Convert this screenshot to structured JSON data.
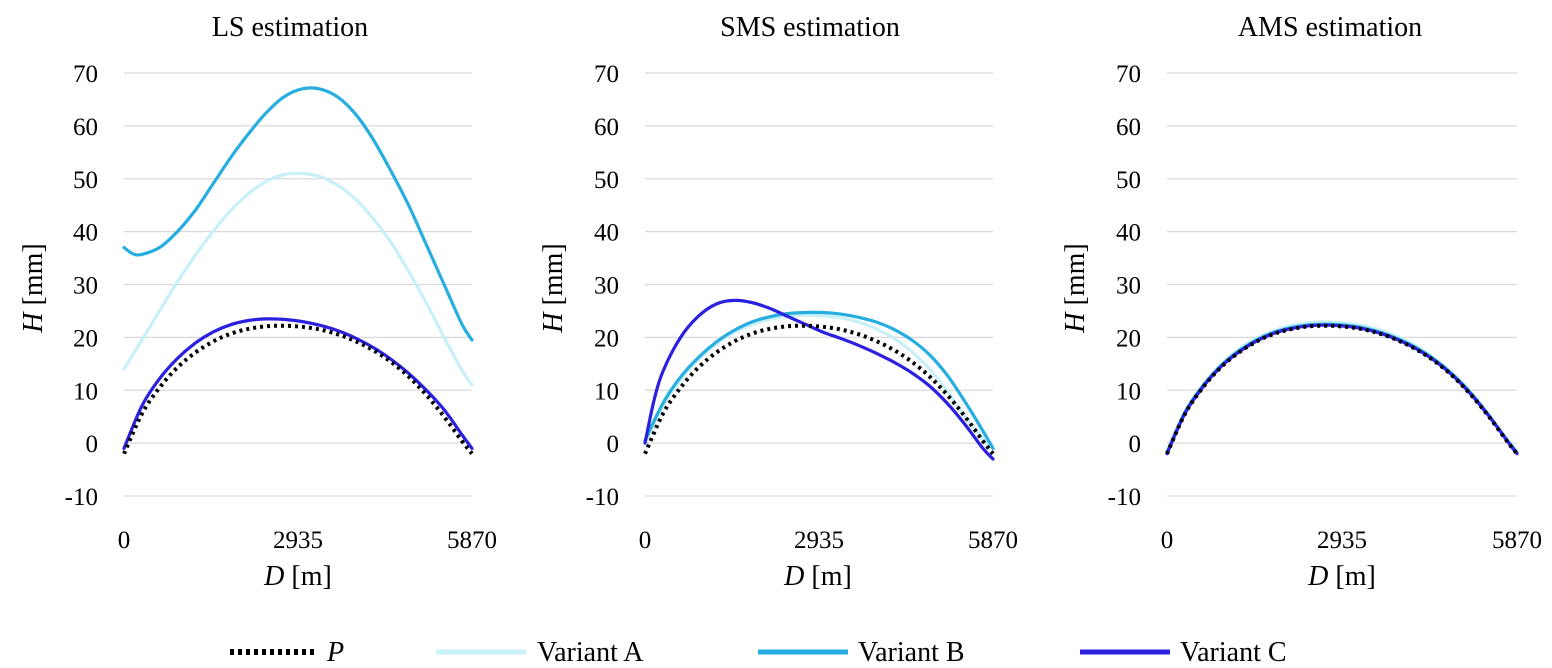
{
  "chart_data": [
    {
      "type": "line",
      "title": "LS estimation",
      "xlabel_var": "D",
      "xlabel_unit": " [m]",
      "ylabel_var": "H",
      "ylabel_unit": " [mm]",
      "xlim": [
        0,
        5870
      ],
      "ylim": [
        -10,
        70
      ],
      "xticks": [
        "0",
        "2935",
        "5870"
      ],
      "yticks": [
        "70",
        "60",
        "50",
        "40",
        "30",
        "20",
        "10",
        "0",
        "-10"
      ],
      "grid": true,
      "series": [
        {
          "name": "P",
          "x": [
            0,
            300,
            600,
            900,
            1200,
            1500,
            1800,
            2100,
            2400,
            2700,
            3000,
            3300,
            3600,
            3900,
            4200,
            4500,
            4800,
            5100,
            5400,
            5700,
            5870
          ],
          "y": [
            -2,
            5.5,
            10.5,
            14.3,
            17.1,
            19.2,
            20.7,
            21.6,
            22.1,
            22.2,
            22,
            21.5,
            20.6,
            19.3,
            17.6,
            15.4,
            12.6,
            9.1,
            5,
            0.4,
            -2
          ]
        },
        {
          "name": "Variant A",
          "x": [
            0,
            300,
            600,
            900,
            1200,
            1500,
            1800,
            2100,
            2400,
            2700,
            3000,
            3300,
            3600,
            3900,
            4200,
            4500,
            4800,
            5100,
            5400,
            5700,
            5870
          ],
          "y": [
            14,
            19.5,
            25,
            30.5,
            35.5,
            40,
            44,
            47.2,
            49.5,
            50.8,
            51,
            50.4,
            48.8,
            46.2,
            42.5,
            38,
            32.5,
            26.5,
            20,
            13.8,
            11
          ]
        },
        {
          "name": "Variant B",
          "x": [
            0,
            150,
            300,
            600,
            900,
            1200,
            1500,
            1800,
            2100,
            2400,
            2700,
            3000,
            3300,
            3600,
            3900,
            4200,
            4500,
            4800,
            5100,
            5400,
            5700,
            5870
          ],
          "y": [
            37,
            35.8,
            35.7,
            37,
            40,
            44,
            49,
            54,
            58.5,
            62.5,
            65.5,
            67,
            67,
            65.5,
            62.3,
            57.5,
            51.5,
            45,
            37.5,
            30,
            22.5,
            19.5
          ]
        },
        {
          "name": "Variant C",
          "x": [
            0,
            300,
            600,
            900,
            1200,
            1500,
            1800,
            2100,
            2400,
            2700,
            3000,
            3300,
            3600,
            3900,
            4200,
            4500,
            4800,
            5100,
            5400,
            5700,
            5870
          ],
          "y": [
            -1,
            7,
            12.2,
            16,
            18.9,
            21,
            22.4,
            23.2,
            23.5,
            23.4,
            23,
            22.3,
            21.3,
            19.9,
            18.1,
            15.9,
            13.2,
            10,
            6.3,
            1.6,
            -1
          ]
        }
      ]
    },
    {
      "type": "line",
      "title": "SMS estimation",
      "xlabel_var": "D",
      "xlabel_unit": " [m]",
      "ylabel_var": "H",
      "ylabel_unit": " [mm]",
      "xlim": [
        0,
        5870
      ],
      "ylim": [
        -10,
        70
      ],
      "xticks": [
        "0",
        "2935",
        "5870"
      ],
      "yticks": [
        "70",
        "60",
        "50",
        "40",
        "30",
        "20",
        "10",
        "0",
        "-10"
      ],
      "grid": true,
      "series": [
        {
          "name": "P",
          "x": [
            0,
            300,
            600,
            900,
            1200,
            1500,
            1800,
            2100,
            2400,
            2700,
            3000,
            3300,
            3600,
            3900,
            4200,
            4500,
            4800,
            5100,
            5400,
            5700,
            5870
          ],
          "y": [
            -2,
            5.5,
            10.5,
            14.3,
            17.1,
            19.2,
            20.7,
            21.6,
            22.1,
            22.2,
            22,
            21.5,
            20.6,
            19.3,
            17.6,
            15.4,
            12.6,
            9.1,
            5,
            0.4,
            -2
          ]
        },
        {
          "name": "Variant A",
          "x": [
            0,
            300,
            600,
            900,
            1200,
            1500,
            1800,
            2100,
            2400,
            2700,
            3000,
            3300,
            3600,
            3900,
            4200,
            4500,
            4800,
            5100,
            5400,
            5700,
            5870
          ],
          "y": [
            0,
            7,
            12,
            15.8,
            18.7,
            20.9,
            22.4,
            23.4,
            24,
            24.2,
            24.1,
            23.7,
            22.9,
            21.6,
            19.8,
            17.3,
            14,
            9.8,
            5,
            0.8,
            -1
          ]
        },
        {
          "name": "Variant B",
          "x": [
            0,
            300,
            600,
            900,
            1200,
            1500,
            1800,
            2100,
            2400,
            2700,
            3000,
            3300,
            3600,
            3900,
            4200,
            4500,
            4800,
            5100,
            5400,
            5700,
            5870
          ],
          "y": [
            0.5,
            7.5,
            12.5,
            16.2,
            19.1,
            21.3,
            22.9,
            23.9,
            24.5,
            24.7,
            24.7,
            24.4,
            23.8,
            22.9,
            21.5,
            19.5,
            16.7,
            12.8,
            7.8,
            2.3,
            -1
          ]
        },
        {
          "name": "Variant C",
          "x": [
            0,
            150,
            300,
            600,
            900,
            1200,
            1500,
            1800,
            2100,
            2400,
            2700,
            3000,
            3300,
            3600,
            3900,
            4200,
            4500,
            4800,
            5100,
            5400,
            5700,
            5870
          ],
          "y": [
            0,
            8,
            13.5,
            20,
            24,
            26.3,
            27,
            26.6,
            25.5,
            24,
            22.5,
            21,
            19.8,
            18.5,
            17,
            15.3,
            13.3,
            10.8,
            7.5,
            3.5,
            -1,
            -3
          ]
        }
      ]
    },
    {
      "type": "line",
      "title": "AMS estimation",
      "xlabel_var": "D",
      "xlabel_unit": " [m]",
      "ylabel_var": "H",
      "ylabel_unit": " [mm]",
      "xlim": [
        0,
        5870
      ],
      "ylim": [
        -10,
        70
      ],
      "xticks": [
        "0",
        "2935",
        "5870"
      ],
      "yticks": [
        "70",
        "60",
        "50",
        "40",
        "30",
        "20",
        "10",
        "0",
        "-10"
      ],
      "grid": true,
      "series": [
        {
          "name": "P",
          "x": [
            0,
            300,
            600,
            900,
            1200,
            1500,
            1800,
            2100,
            2400,
            2700,
            3000,
            3300,
            3600,
            3900,
            4200,
            4500,
            4800,
            5100,
            5400,
            5700,
            5870
          ],
          "y": [
            -2,
            5.5,
            10.5,
            14.3,
            17.1,
            19.2,
            20.7,
            21.6,
            22.1,
            22.2,
            22,
            21.5,
            20.6,
            19.3,
            17.6,
            15.4,
            12.6,
            9.1,
            5,
            0.4,
            -2
          ]
        },
        {
          "name": "Variant A",
          "x": [
            0,
            300,
            600,
            900,
            1200,
            1500,
            1800,
            2100,
            2400,
            2700,
            3000,
            3300,
            3600,
            3900,
            4200,
            4500,
            4800,
            5100,
            5400,
            5700,
            5870
          ],
          "y": [
            -1.5,
            6,
            11,
            14.8,
            17.7,
            19.8,
            21.3,
            22.3,
            22.8,
            22.9,
            22.7,
            22.2,
            21.3,
            20,
            18.2,
            15.9,
            13.1,
            9.6,
            5.4,
            0.8,
            -1.5
          ]
        },
        {
          "name": "Variant B",
          "x": [
            0,
            300,
            600,
            900,
            1200,
            1500,
            1800,
            2100,
            2400,
            2700,
            3000,
            3300,
            3600,
            3900,
            4200,
            4500,
            4800,
            5100,
            5400,
            5700,
            5870
          ],
          "y": [
            -1.8,
            5.8,
            10.8,
            14.6,
            17.4,
            19.5,
            21,
            21.9,
            22.4,
            22.5,
            22.3,
            21.8,
            20.9,
            19.6,
            17.9,
            15.7,
            12.9,
            9.4,
            5.2,
            0.6,
            -1.8
          ]
        },
        {
          "name": "Variant C",
          "x": [
            0,
            300,
            600,
            900,
            1200,
            1500,
            1800,
            2100,
            2400,
            2700,
            3000,
            3300,
            3600,
            3900,
            4200,
            4500,
            4800,
            5100,
            5400,
            5700,
            5870
          ],
          "y": [
            -2,
            5.6,
            10.6,
            14.4,
            17.2,
            19.3,
            20.8,
            21.7,
            22.2,
            22.3,
            22.1,
            21.6,
            20.7,
            19.4,
            17.7,
            15.5,
            12.7,
            9.2,
            5.1,
            0.5,
            -2
          ]
        }
      ]
    }
  ],
  "legend": {
    "placement": "bottom",
    "entries": [
      {
        "label": "P",
        "color": "#000000",
        "style": "dotted",
        "italic": true
      },
      {
        "label": "Variant A",
        "color": "#c8f0f7",
        "style": "solid",
        "italic": false
      },
      {
        "label": "Variant B",
        "color": "#27aee0",
        "style": "solid",
        "italic": false
      },
      {
        "label": "Variant C",
        "color": "#2b20e0",
        "style": "solid",
        "italic": false
      }
    ]
  },
  "series_colors": {
    "P": "#000000",
    "Variant A": "#c8f0f7",
    "Variant B": "#27aee0",
    "Variant C": "#2b20e0"
  }
}
